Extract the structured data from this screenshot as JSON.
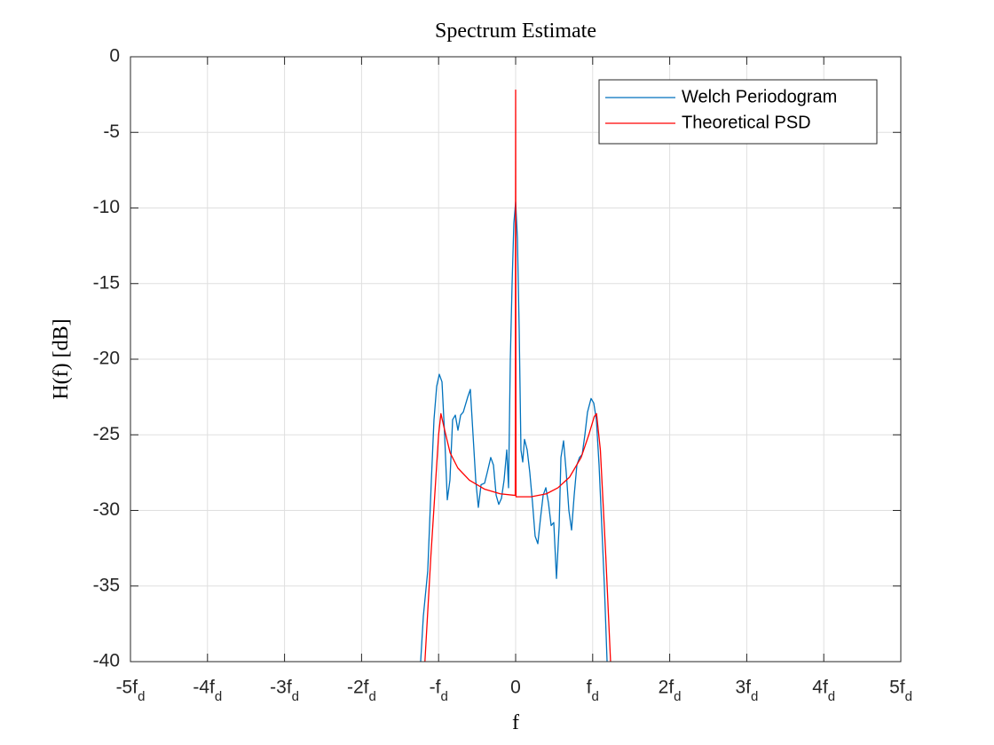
{
  "chart_data": {
    "type": "line",
    "title": "Spectrum Estimate",
    "xlabel": "f",
    "ylabel": "H(f) [dB]",
    "xlim": [
      -5,
      5
    ],
    "ylim": [
      -40,
      0
    ],
    "xticks": [
      {
        "value": -5,
        "label": "-5f_d"
      },
      {
        "value": -4,
        "label": "-4f_d"
      },
      {
        "value": -3,
        "label": "-3f_d"
      },
      {
        "value": -2,
        "label": "-2f_d"
      },
      {
        "value": -1,
        "label": "-f_d"
      },
      0,
      {
        "value": 1,
        "label": "f_d"
      },
      {
        "value": 2,
        "label": "2f_d"
      },
      {
        "value": 3,
        "label": "3f_d"
      },
      {
        "value": 4,
        "label": "4f_d"
      },
      {
        "value": 5,
        "label": "5f_d"
      }
    ],
    "yticks": [
      0,
      -5,
      -10,
      -15,
      -20,
      -25,
      -30,
      -35,
      -40
    ],
    "grid": true,
    "legend": "northeast",
    "series": [
      {
        "name": "Welch Periodogram",
        "color": "#0072bd",
        "x": [
          -1.25,
          -1.233,
          -1.198,
          -1.141,
          -1.094,
          -1.06,
          -1.025,
          -0.991,
          -0.956,
          -0.922,
          -0.887,
          -0.853,
          -0.818,
          -0.783,
          -0.749,
          -0.714,
          -0.68,
          -0.622,
          -0.588,
          -0.553,
          -0.518,
          -0.484,
          -0.449,
          -0.403,
          -0.369,
          -0.323,
          -0.288,
          -0.253,
          -0.219,
          -0.184,
          -0.15,
          -0.115,
          -0.092,
          -0.069,
          -0.046,
          -0.023,
          0,
          0.023,
          0.046,
          0.069,
          0.092,
          0.115,
          0.15,
          0.184,
          0.219,
          0.253,
          0.288,
          0.323,
          0.357,
          0.392,
          0.426,
          0.461,
          0.495,
          0.53,
          0.565,
          0.588,
          0.622,
          0.657,
          0.691,
          0.726,
          0.76,
          0.795,
          0.829,
          0.864,
          0.899,
          0.933,
          0.979,
          1.014,
          1.048,
          1.083,
          1.118,
          1.152,
          1.187,
          1.2
        ],
        "values": [
          -42,
          -40,
          -37,
          -34,
          -28,
          -24,
          -21.8,
          -21,
          -21.5,
          -25,
          -29.3,
          -28,
          -24,
          -23.7,
          -24.7,
          -23.7,
          -23.5,
          -22.5,
          -22,
          -25,
          -28,
          -29.8,
          -28.3,
          -28.2,
          -27.5,
          -26.5,
          -27,
          -29,
          -29.6,
          -29.2,
          -28,
          -26,
          -28.5,
          -20,
          -15,
          -11,
          -9.6,
          -12,
          -18,
          -26,
          -26.8,
          -25.3,
          -26,
          -27.5,
          -29.5,
          -31.7,
          -32.2,
          -30.5,
          -29,
          -28.5,
          -29.5,
          -31,
          -30.8,
          -34.5,
          -31,
          -26.5,
          -25.4,
          -27.5,
          -30,
          -31.3,
          -29,
          -27,
          -26.5,
          -26.3,
          -25,
          -23.5,
          -22.6,
          -22.9,
          -24,
          -27,
          -31,
          -35,
          -40,
          -42
        ]
      },
      {
        "name": "Theoretical PSD",
        "color": "#ff0000",
        "x": [
          -1.2,
          -1.1,
          -1.0,
          -0.97,
          -0.93,
          -0.85,
          -0.75,
          -0.6,
          -0.4,
          -0.2,
          -0.02,
          -0.005,
          0,
          0.005,
          0.02,
          0.2,
          0.4,
          0.55,
          0.7,
          0.85,
          0.95,
          1.02,
          1.05,
          1.1,
          1.17,
          1.25
        ],
        "values": [
          -42,
          -33,
          -25,
          -23.6,
          -24.5,
          -26.2,
          -27.2,
          -28,
          -28.6,
          -28.9,
          -29,
          -29,
          -2.2,
          -29.1,
          -29.1,
          -29.1,
          -28.9,
          -28.5,
          -27.8,
          -26.5,
          -25,
          -23.8,
          -23.6,
          -26,
          -33,
          -42
        ]
      }
    ]
  }
}
